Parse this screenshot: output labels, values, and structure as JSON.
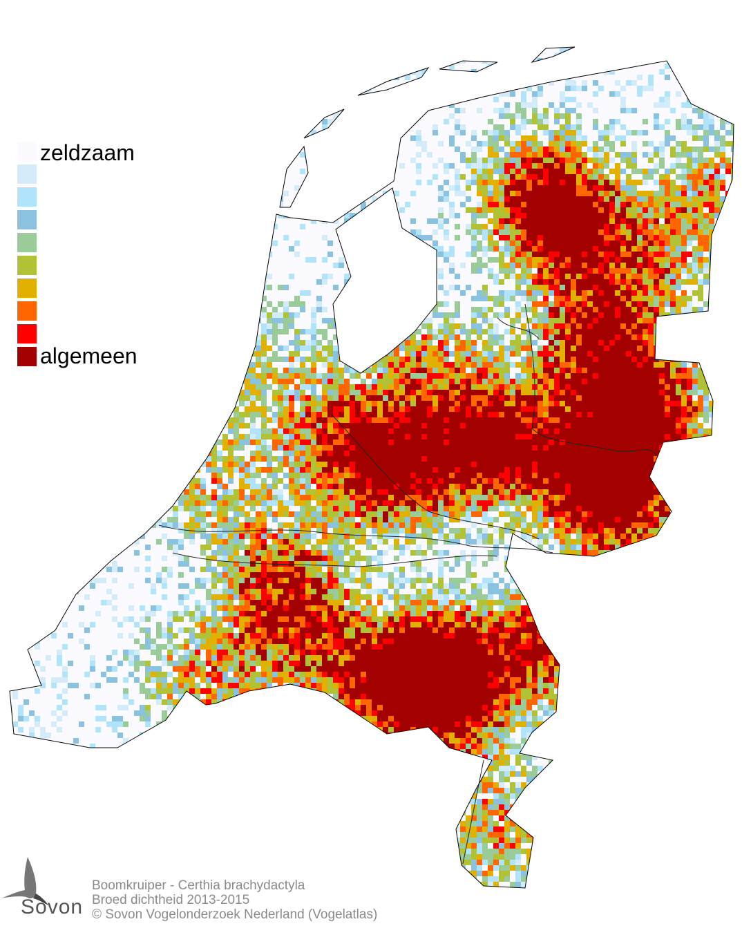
{
  "legend": {
    "top_label": "zeldzaam",
    "bottom_label": "algemeen",
    "colors": [
      "#fbfbff",
      "#d4ecfa",
      "#b1e3fa",
      "#8bc2df",
      "#9acb98",
      "#b2c237",
      "#e1b000",
      "#ff6600",
      "#ff0000",
      "#a30000"
    ]
  },
  "footer": {
    "line1": "Boomkruiper - Certhia brachydactyla",
    "line2": "Broed dichtheid 2013-2015",
    "line3": "© Sovon Vogelonderzoek Nederland (Vogelatlas)"
  },
  "logo": {
    "text": "Sovon",
    "icon": "swallow-icon"
  }
}
